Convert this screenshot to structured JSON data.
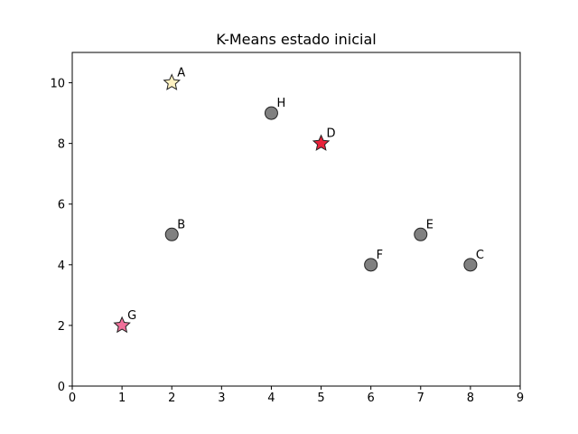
{
  "chart_data": {
    "type": "scatter",
    "title": "K-Means estado inicial",
    "xlabel": "",
    "ylabel": "",
    "xlim": [
      0,
      9
    ],
    "ylim": [
      0,
      11
    ],
    "xticks": [
      0,
      1,
      2,
      3,
      4,
      5,
      6,
      7,
      8,
      9
    ],
    "yticks": [
      0,
      2,
      4,
      6,
      8,
      10
    ],
    "grid": false,
    "points": [
      {
        "label": "A",
        "x": 2,
        "y": 10,
        "marker": "star",
        "color": "#FFF2C2"
      },
      {
        "label": "B",
        "x": 2,
        "y": 5,
        "marker": "circle",
        "color": "#808080"
      },
      {
        "label": "C",
        "x": 8,
        "y": 4,
        "marker": "circle",
        "color": "#808080"
      },
      {
        "label": "D",
        "x": 5,
        "y": 8,
        "marker": "star",
        "color": "#E8223A"
      },
      {
        "label": "E",
        "x": 7,
        "y": 5,
        "marker": "circle",
        "color": "#808080"
      },
      {
        "label": "F",
        "x": 6,
        "y": 4,
        "marker": "circle",
        "color": "#808080"
      },
      {
        "label": "G",
        "x": 1,
        "y": 2,
        "marker": "star",
        "color": "#F0709A"
      },
      {
        "label": "H",
        "x": 4,
        "y": 9,
        "marker": "circle",
        "color": "#808080"
      }
    ],
    "marker_edge_color": "#222222"
  }
}
